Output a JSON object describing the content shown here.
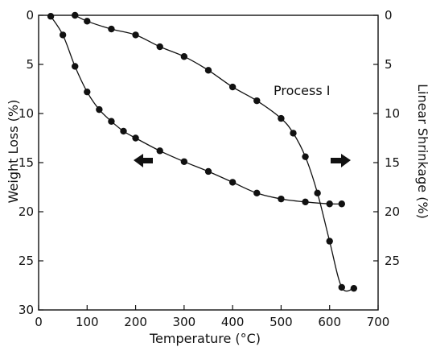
{
  "chart_data": {
    "type": "line",
    "xlabel": "Temperature (°C)",
    "ylabel": "Weight Loss (%)",
    "y2label": "Linear Shrinkage (%)",
    "xlim": [
      0,
      700
    ],
    "ylim": [
      0,
      30
    ],
    "y2lim": [
      0,
      30
    ],
    "y_inverted": true,
    "xticks": [
      0,
      100,
      200,
      300,
      400,
      500,
      600,
      700
    ],
    "yticks": [
      0,
      5,
      10,
      15,
      20,
      25,
      30
    ],
    "y2ticks": [
      0,
      5,
      10,
      15,
      20,
      25
    ],
    "grid": false,
    "annotation": "Process I",
    "series": [
      {
        "axis": "left",
        "points": [
          [
            25,
            0.1
          ],
          [
            50,
            2.0
          ],
          [
            75,
            5.2
          ],
          [
            100,
            7.8
          ],
          [
            125,
            9.6
          ],
          [
            150,
            10.8
          ],
          [
            175,
            11.8
          ],
          [
            200,
            12.5
          ],
          [
            250,
            13.8
          ],
          [
            300,
            14.9
          ],
          [
            350,
            15.9
          ],
          [
            400,
            17.0
          ],
          [
            450,
            18.1
          ],
          [
            500,
            18.7
          ],
          [
            550,
            19.0
          ],
          [
            600,
            19.2
          ],
          [
            625,
            19.2
          ]
        ]
      },
      {
        "axis": "right",
        "points": [
          [
            75,
            0.0
          ],
          [
            100,
            0.6
          ],
          [
            150,
            1.4
          ],
          [
            200,
            2.0
          ],
          [
            250,
            3.2
          ],
          [
            300,
            4.2
          ],
          [
            350,
            5.6
          ],
          [
            400,
            7.3
          ],
          [
            450,
            8.7
          ],
          [
            500,
            10.5
          ],
          [
            525,
            12.0
          ],
          [
            550,
            14.4
          ],
          [
            575,
            18.1
          ],
          [
            600,
            23.0
          ],
          [
            625,
            27.7
          ],
          [
            650,
            27.8
          ]
        ]
      }
    ]
  }
}
